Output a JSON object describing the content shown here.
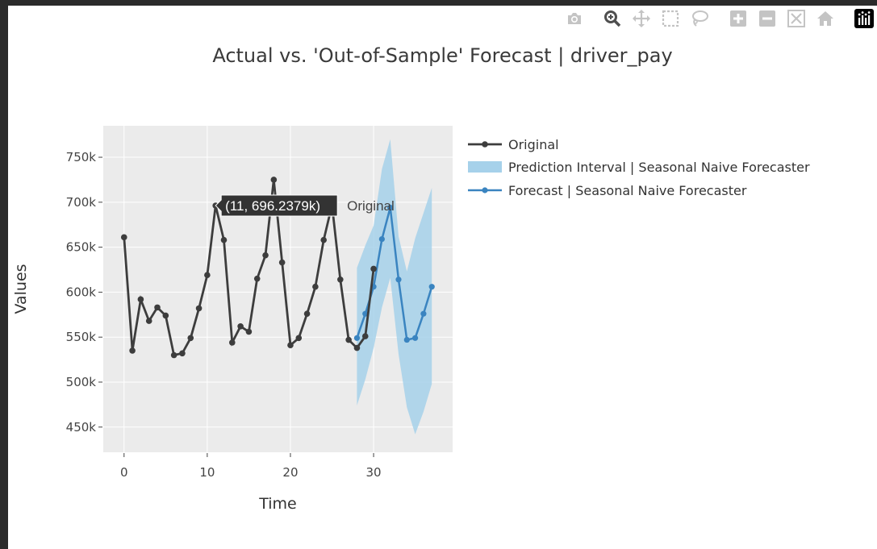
{
  "toolbar": {
    "icons": [
      "camera-icon",
      "zoom-icon",
      "pan-icon",
      "box-select-icon",
      "lasso-icon",
      "zoom-in-icon",
      "zoom-out-icon",
      "autoscale-icon",
      "reset-axes-icon",
      "plotly-logo-icon"
    ]
  },
  "chart_data": {
    "type": "line",
    "title": "Actual vs. 'Out-of-Sample' Forecast | driver_pay",
    "xlabel": "Time",
    "ylabel": "Values",
    "xlim": [
      -2.5,
      39.5
    ],
    "ylim": [
      422,
      785
    ],
    "x_ticks": [
      0,
      10,
      20,
      30
    ],
    "x_tick_labels": [
      "0",
      "10",
      "20",
      "30"
    ],
    "y_ticks": [
      450,
      500,
      550,
      600,
      650,
      700,
      750
    ],
    "y_tick_labels": [
      "450k",
      "500k",
      "550k",
      "600k",
      "650k",
      "700k",
      "750k"
    ],
    "grid": true,
    "legend_position": "right",
    "series": [
      {
        "name": "Original",
        "color": "#3d3d3d",
        "x": [
          0,
          1,
          2,
          3,
          4,
          5,
          6,
          7,
          8,
          9,
          10,
          11,
          12,
          13,
          14,
          15,
          16,
          17,
          18,
          19,
          20,
          21,
          22,
          23,
          24,
          25,
          26,
          27,
          28,
          29,
          30
        ],
        "values": [
          661,
          535,
          592,
          568,
          583,
          574,
          530,
          532,
          549,
          582,
          619,
          696.2379,
          658,
          544,
          562,
          556,
          615,
          641,
          725,
          633,
          541,
          549,
          576,
          606,
          658,
          697,
          614,
          547,
          538,
          551,
          626
        ]
      },
      {
        "name": "Prediction Interval | Seasonal Naive Forecaster",
        "color": "#a6d1ea",
        "x": [
          28,
          29,
          30,
          31,
          32,
          33,
          34,
          35,
          36,
          37
        ],
        "upper": [
          627,
          652,
          674,
          737,
          770,
          662,
          623,
          660,
          688,
          716
        ],
        "lower": [
          474,
          503,
          538,
          583,
          616,
          531,
          472,
          442,
          467,
          498
        ]
      },
      {
        "name": "Forecast | Seasonal Naive Forecaster",
        "color": "#3a84c0",
        "x": [
          28,
          29,
          30,
          31,
          32,
          33,
          34,
          35,
          36,
          37
        ],
        "values": [
          549,
          576,
          606,
          659,
          694,
          614,
          547,
          549,
          576,
          606
        ]
      }
    ],
    "hover": {
      "label": "(11, 696.2379k)",
      "trace": "Original",
      "x": 11,
      "y": 696.2379
    }
  }
}
